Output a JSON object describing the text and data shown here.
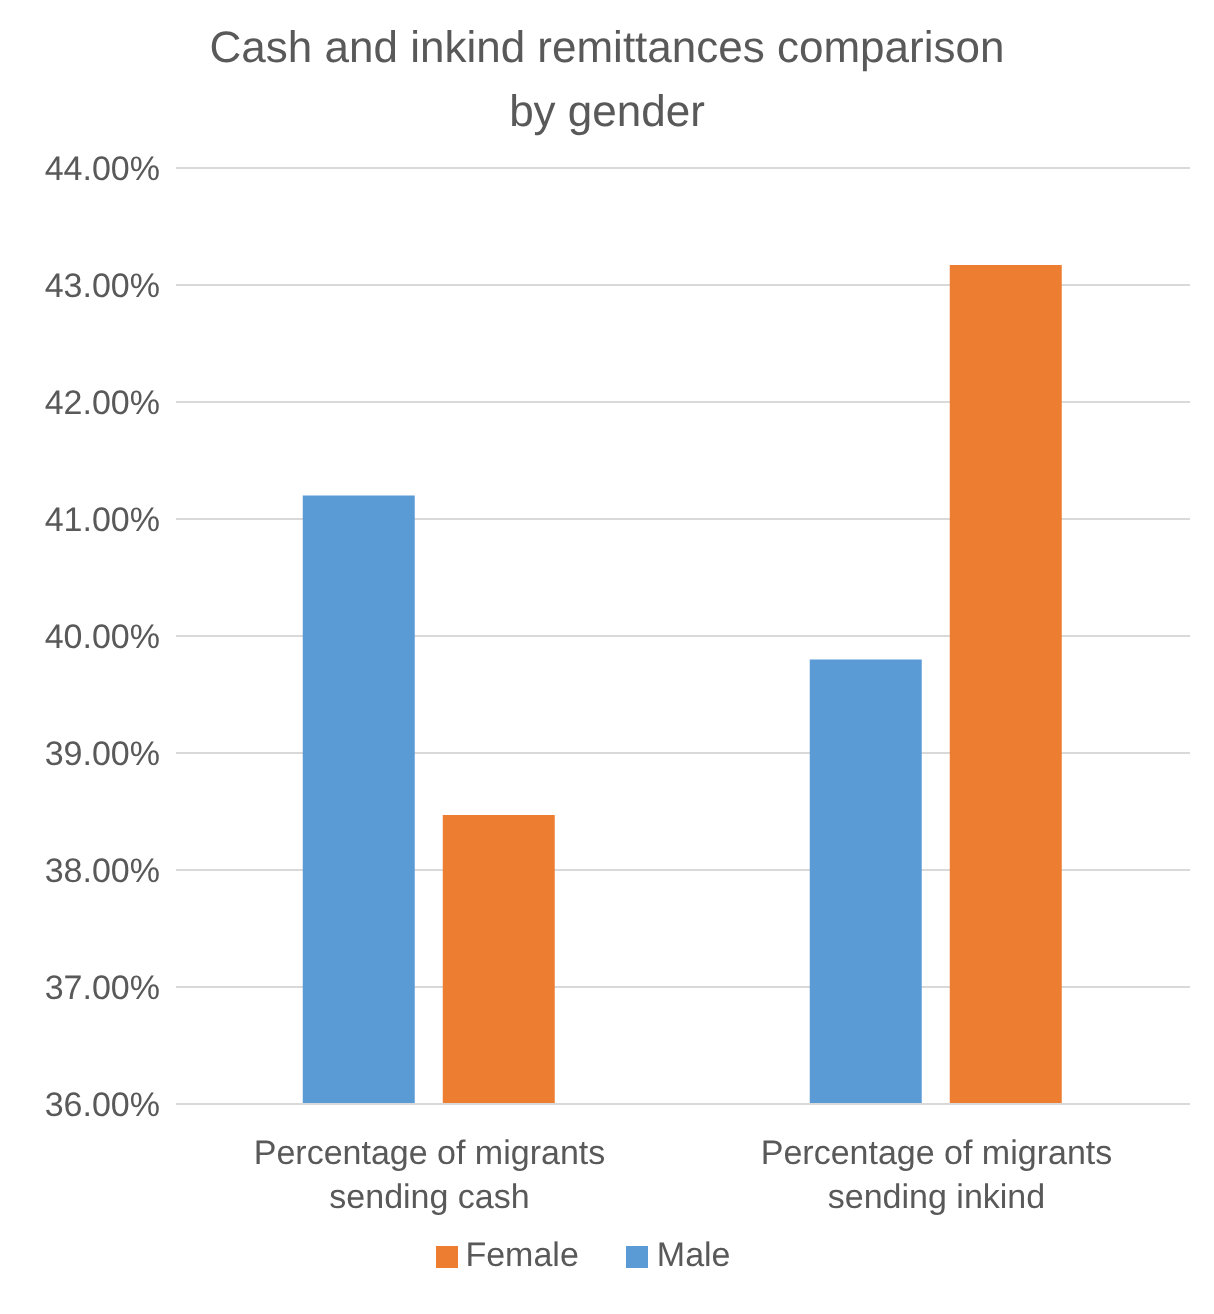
{
  "chart_data": {
    "type": "bar",
    "title": "Cash and inkind remittances comparison by gender",
    "categories": [
      "Percentage of migrants sending cash",
      "Percentage of migrants sending inkind"
    ],
    "series": [
      {
        "name": "Male",
        "color": "#5b9bd5",
        "values": [
          41.2,
          39.8
        ]
      },
      {
        "name": "Female",
        "color": "#ed7d31",
        "values": [
          38.47,
          43.17
        ]
      }
    ],
    "ylim": [
      36,
      44
    ],
    "yticks": [
      {
        "value": 36,
        "label": "36.00%"
      },
      {
        "value": 37,
        "label": "37.00%"
      },
      {
        "value": 38,
        "label": "38.00%"
      },
      {
        "value": 39,
        "label": "39.00%"
      },
      {
        "value": 40,
        "label": "40.00%"
      },
      {
        "value": 41,
        "label": "41.00%"
      },
      {
        "value": 42,
        "label": "42.00%"
      },
      {
        "value": 43,
        "label": "43.00%"
      },
      {
        "value": 44,
        "label": "44.00%"
      }
    ],
    "grid": "y",
    "legend": "bottom"
  }
}
